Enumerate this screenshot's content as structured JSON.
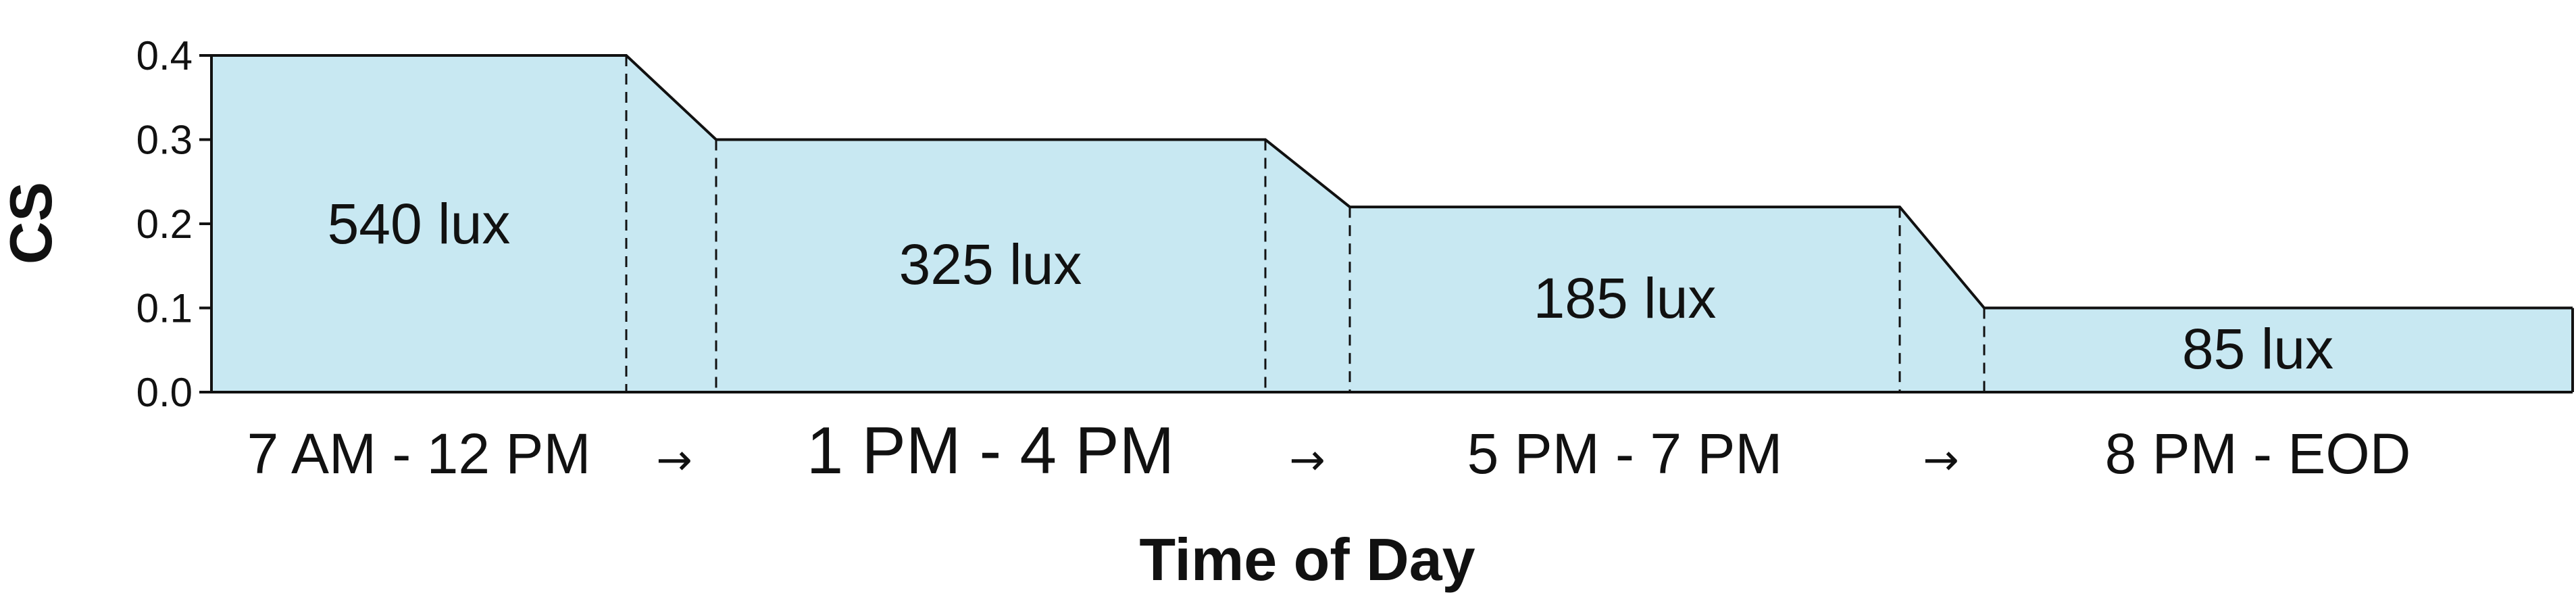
{
  "chart_data": {
    "type": "area",
    "ylabel": "CS",
    "xlabel": "Time of Day",
    "ylim": [
      0.0,
      0.4
    ],
    "yticks": [
      "0.0",
      "0.1",
      "0.2",
      "0.3",
      "0.4"
    ],
    "fill_color": "#c8e8f2",
    "line_color": "#111111",
    "segments": [
      {
        "period": "7 AM - 12 PM",
        "cs": 0.4,
        "lux_label": "540 lux"
      },
      {
        "period": "1 PM - 4 PM",
        "cs": 0.3,
        "lux_label": "325 lux"
      },
      {
        "period": "5 PM - 7 PM",
        "cs": 0.22,
        "lux_label": "185 lux"
      },
      {
        "period": "8 PM - EOD",
        "cs": 0.1,
        "lux_label": "85 lux"
      }
    ],
    "arrows": [
      "→",
      "→",
      "→"
    ]
  }
}
